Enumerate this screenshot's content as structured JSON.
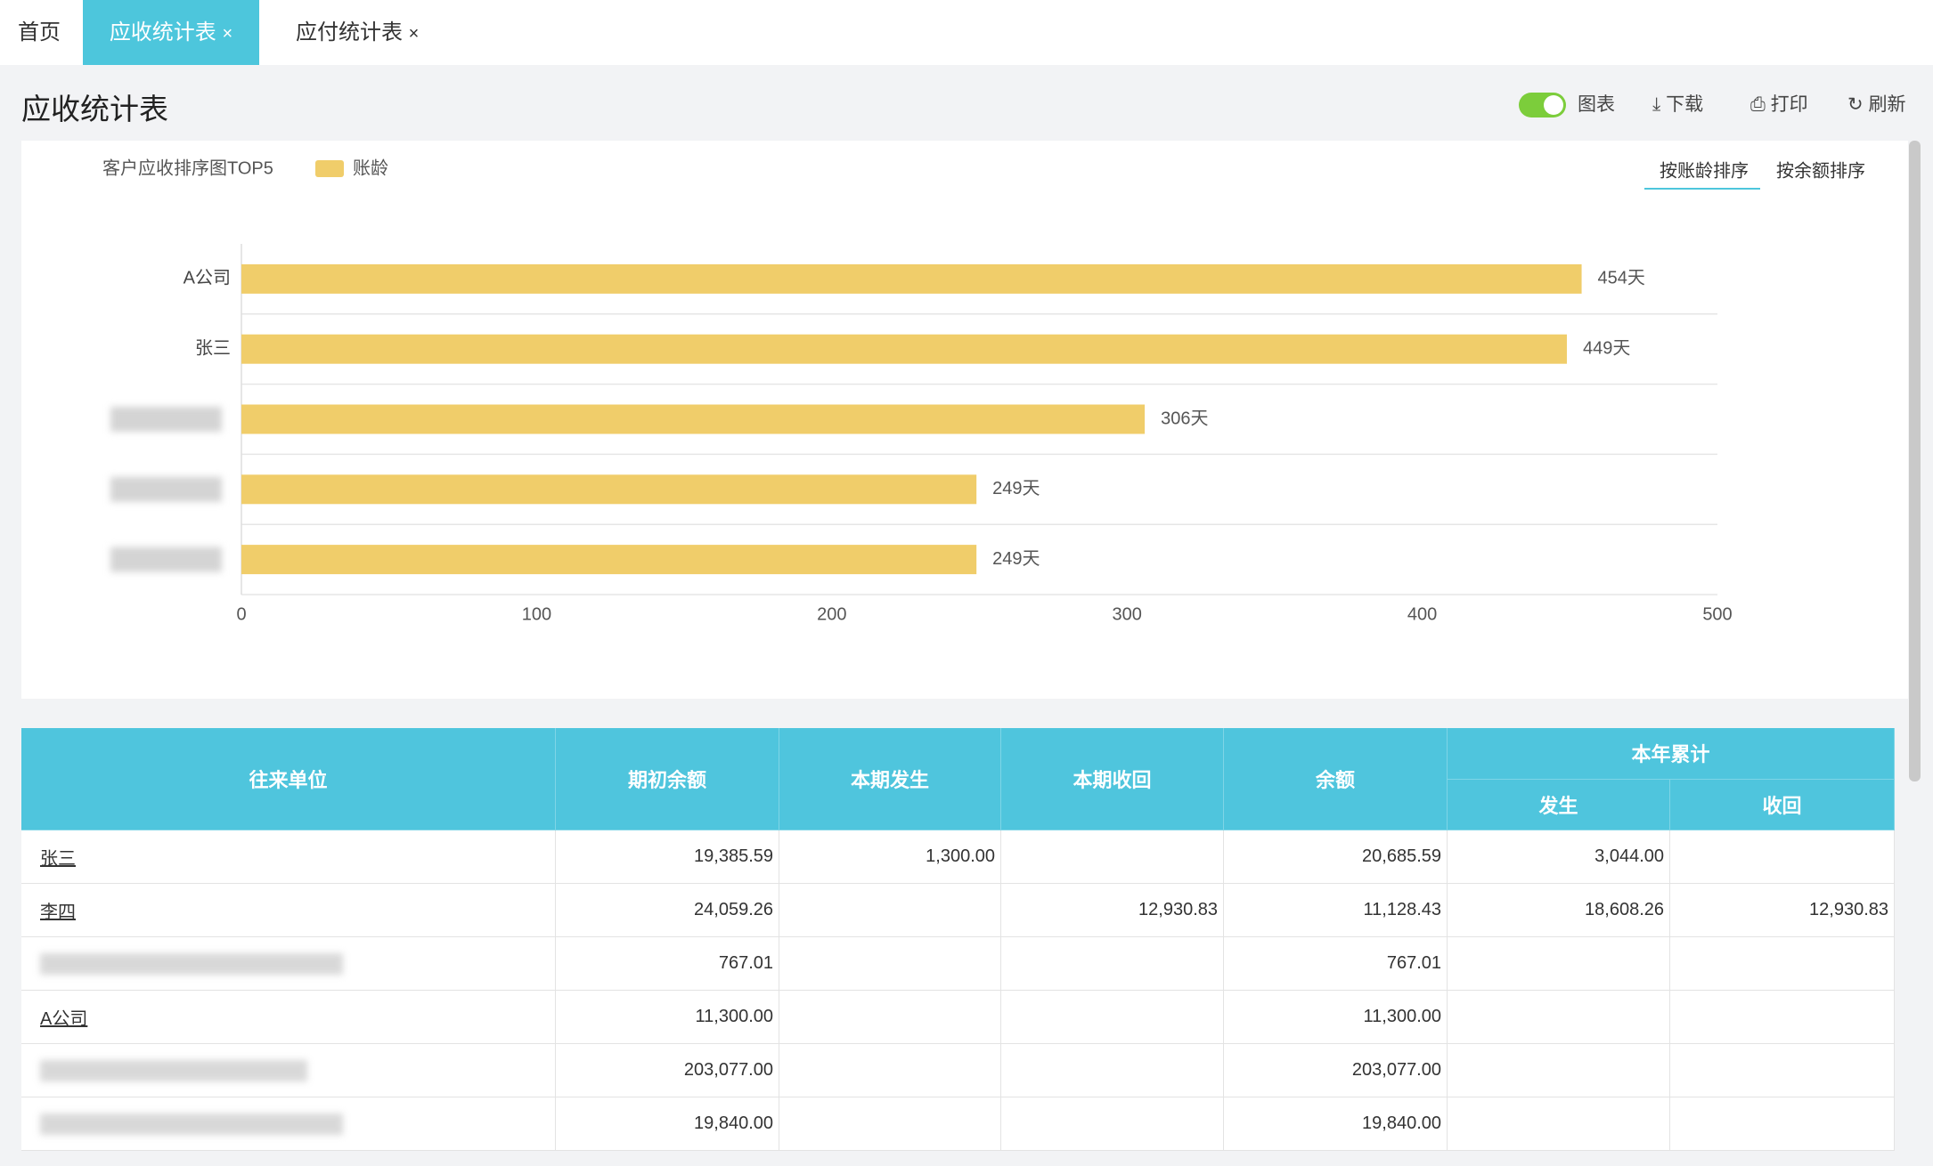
{
  "tabs": [
    "首页",
    "应收统计表",
    "应付统计表"
  ],
  "header": {
    "title": "应收统计表",
    "toolbar": [
      "图表",
      "下载",
      "打印",
      "刷新"
    ]
  },
  "chart_data": {
    "type": "bar",
    "orientation": "horizontal",
    "title": "客户应收排序图TOP5",
    "sort_options": [
      "按账龄排序",
      "按余额排序"
    ],
    "categories": [
      "A公司",
      "张三",
      null,
      null,
      null
    ],
    "series": [
      {
        "name": "账龄",
        "color": "#f0cd6a",
        "values": [
          454,
          449,
          306,
          249,
          249
        ],
        "value_labels": [
          "454天",
          "449天",
          "306天",
          "249天",
          "249天"
        ]
      }
    ],
    "xlim": [
      0,
      500
    ],
    "xticks": [
      0,
      100,
      200,
      300,
      400,
      500
    ]
  },
  "table": {
    "headers": [
      "往来单位",
      "期初余额",
      "本期发生",
      "本期收回",
      "余额"
    ],
    "group": {
      "label": "本年累计",
      "columns": [
        "发生",
        "收回"
      ]
    },
    "rows": [
      [
        "张三",
        "19,385.59",
        "1,300.00",
        null,
        "20,685.59",
        "3,044.00",
        null
      ],
      [
        "李四",
        "24,059.26",
        null,
        "12,930.83",
        "11,128.43",
        "18,608.26",
        "12,930.83"
      ],
      [
        null,
        "767.01",
        null,
        null,
        "767.01",
        null,
        null
      ],
      [
        "A公司",
        "11,300.00",
        null,
        null,
        "11,300.00",
        null,
        null
      ],
      [
        null,
        "203,077.00",
        null,
        null,
        "203,077.00",
        null,
        null
      ],
      [
        null,
        "19,840.00",
        null,
        null,
        "19,840.00",
        null,
        null
      ]
    ]
  }
}
